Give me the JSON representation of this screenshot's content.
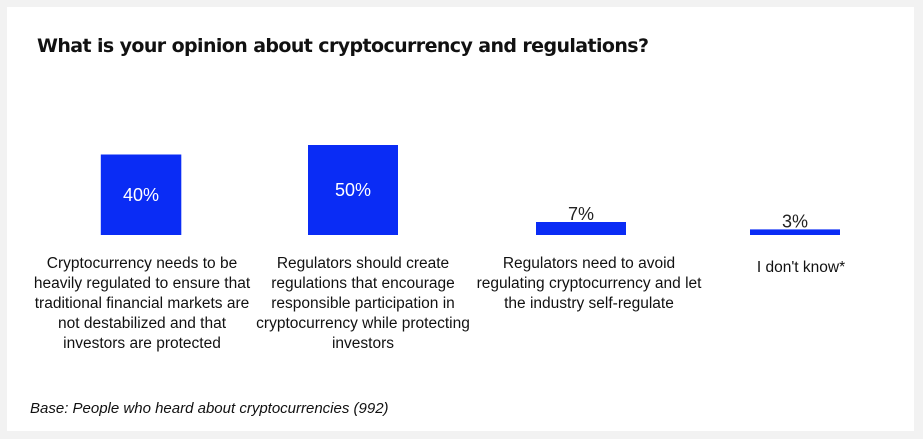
{
  "title": "What is your opinion about cryptocurrency and regulations?",
  "footnote": "Base: People who heard about cryptocurrencies (992)",
  "colors": {
    "bar": "#0a2cf5",
    "background": "#ffffff"
  },
  "chart_data": {
    "type": "bar",
    "title": "What is your opinion about cryptocurrency and regulations?",
    "categories": [
      "Cryptocurrency needs to be heavily regulated to ensure that traditional financial markets are not destabilized and that investors are protected",
      "Regulators should create regulations that encourage responsible participation in cryptocurrency while protecting investors",
      "Regulators need to avoid regulating cryptocurrency and let the industry self-regulate",
      "I don't know*"
    ],
    "values": [
      40,
      50,
      7,
      3
    ],
    "value_labels": [
      "40%",
      "50%",
      "7%",
      "3%"
    ],
    "unit": "%",
    "ylim": [
      0,
      50
    ],
    "grid": false,
    "legend": "none"
  }
}
